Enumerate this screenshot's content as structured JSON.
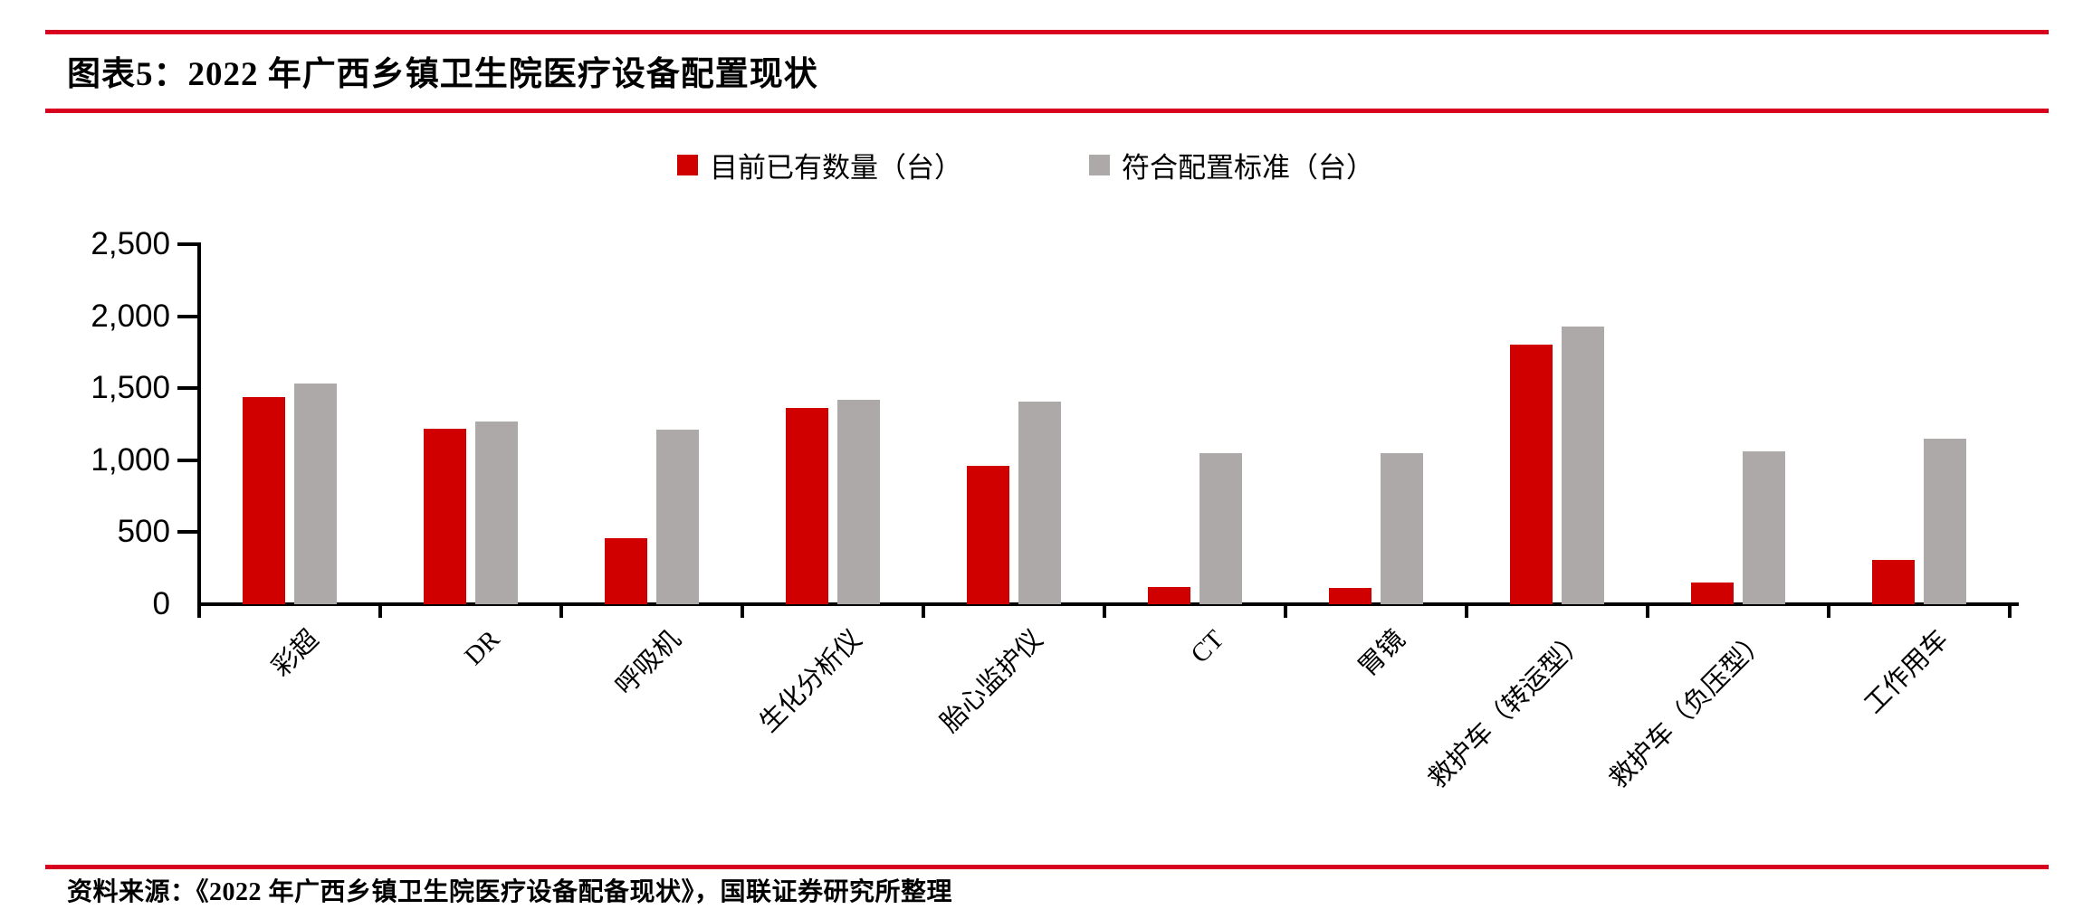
{
  "header": {
    "title": "图表5：2022 年广西乡镇卫生院医疗设备配置现状"
  },
  "legend": [
    {
      "label": "目前已有数量（台）",
      "color": "#D00000"
    },
    {
      "label": "符合配置标准（台）",
      "color": "#ADA9A9"
    }
  ],
  "chart_data": {
    "type": "bar",
    "title": "图表5：2022 年广西乡镇卫生院医疗设备配置现状",
    "categories": [
      "彩超",
      "DR",
      "呼吸机",
      "生化分析仪",
      "胎心监护仪",
      "CT",
      "胃镜",
      "救护车（转运型）",
      "救护车（负压型）",
      "工作用车"
    ],
    "series": [
      {
        "name": "目前已有数量（台）",
        "color": "#D00000",
        "values": [
          1440,
          1220,
          460,
          1360,
          960,
          120,
          110,
          1800,
          150,
          310
        ]
      },
      {
        "name": "符合配置标准（台）",
        "color": "#ADA9A9",
        "values": [
          1530,
          1270,
          1210,
          1420,
          1410,
          1050,
          1050,
          1930,
          1060,
          1150
        ]
      }
    ],
    "xlabel": "",
    "ylabel": "",
    "ylim": [
      0,
      2500
    ],
    "yticks": [
      {
        "value": 2500,
        "label": "2,500"
      },
      {
        "value": 2000,
        "label": "2,000"
      },
      {
        "value": 1500,
        "label": "1,500"
      },
      {
        "value": 1000,
        "label": "1,000"
      },
      {
        "value": 500,
        "label": "500"
      },
      {
        "value": 0,
        "label": "0"
      }
    ],
    "grid": false,
    "legend_position": "top"
  },
  "source": "资料来源：《2022 年广西乡镇卫生院医疗设备配备现状》，国联证券研究所整理",
  "colors": {
    "rule_red": "#D7001F",
    "axis_black": "#000000",
    "bar_red": "#D00000",
    "bar_gray": "#ADA9A9"
  }
}
